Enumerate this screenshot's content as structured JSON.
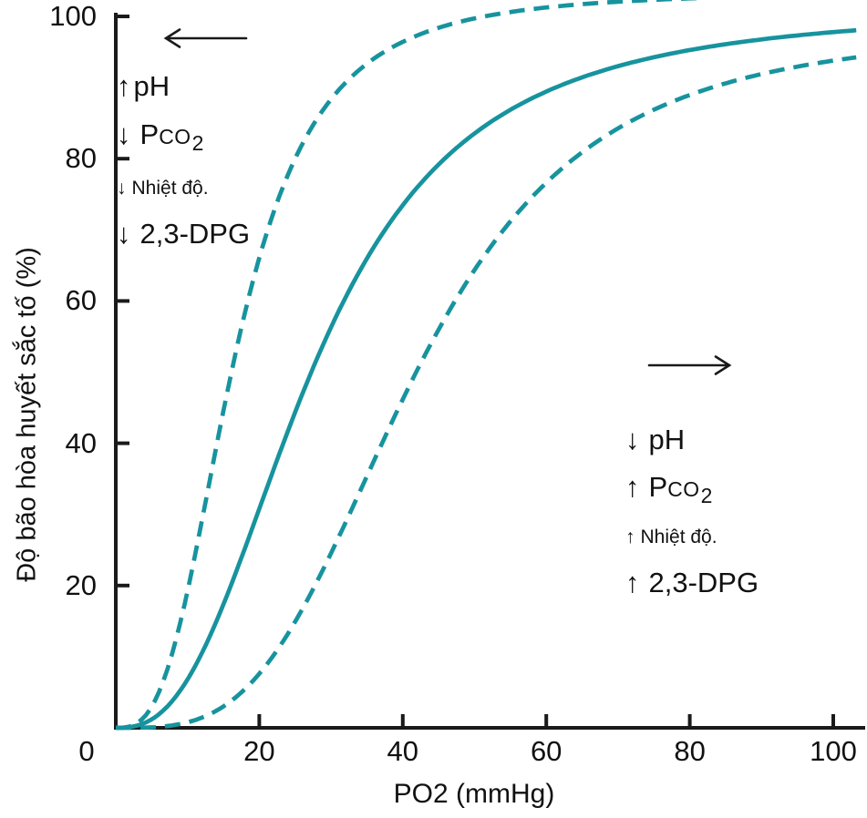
{
  "figure": {
    "background": "#ffffff",
    "curve_color": "#17939E",
    "axis_color": "#1a1a1a",
    "text_color": "#111111"
  },
  "chart_data": {
    "type": "line",
    "title": "",
    "xlabel": "PO2 (mmHg)",
    "ylabel": "Độ bão hòa huyết sắc tố (%)",
    "xlim": [
      0,
      104
    ],
    "ylim": [
      0,
      102
    ],
    "x_ticks": [
      0,
      20,
      40,
      60,
      80,
      100
    ],
    "y_ticks": [
      20,
      40,
      60,
      80,
      100
    ],
    "origin_label": "0",
    "grid": false,
    "legend": "none",
    "series": [
      {
        "name": "left-shifted-curve",
        "line_style": "dashed",
        "model": {
          "p50": 16.5,
          "hill_n": 2.95,
          "scale": 1.035
        },
        "points": [
          [
            0,
            0
          ],
          [
            5,
            3
          ],
          [
            10,
            19
          ],
          [
            16,
            49
          ],
          [
            20,
            66
          ],
          [
            25,
            80
          ],
          [
            30,
            88
          ],
          [
            40,
            96
          ],
          [
            50,
            100
          ],
          [
            60,
            100
          ]
        ]
      },
      {
        "name": "normal-curve",
        "line_style": "solid",
        "model": {
          "p50": 27.5,
          "hill_n": 2.6,
          "scale": 1.012
        },
        "points": [
          [
            0,
            0
          ],
          [
            10,
            7
          ],
          [
            20,
            31
          ],
          [
            27,
            50
          ],
          [
            30,
            56
          ],
          [
            40,
            74
          ],
          [
            50,
            84
          ],
          [
            60,
            89
          ],
          [
            70,
            93
          ],
          [
            80,
            95
          ],
          [
            90,
            97
          ],
          [
            100,
            99
          ]
        ]
      },
      {
        "name": "right-shifted-curve",
        "line_style": "dashed",
        "model": {
          "p50": 41.5,
          "hill_n": 3.4,
          "scale": 0.985
        },
        "points": [
          [
            0,
            0
          ],
          [
            10,
            1
          ],
          [
            20,
            7
          ],
          [
            30,
            25
          ],
          [
            40,
            46
          ],
          [
            42,
            50
          ],
          [
            50,
            64
          ],
          [
            60,
            77
          ],
          [
            70,
            84
          ],
          [
            80,
            89
          ],
          [
            90,
            92
          ],
          [
            100,
            94
          ]
        ]
      }
    ],
    "annotations": {
      "left": {
        "arrow_dir": "left",
        "lines": [
          {
            "glyph": "↑",
            "text": "pH",
            "size": "large",
            "tight": true
          },
          {
            "glyph": "↓",
            "text": "Pco2",
            "size": "large",
            "chem": true
          },
          {
            "glyph": "↓",
            "text": "Nhiệt độ.",
            "size": "small"
          },
          {
            "glyph": "↓",
            "text": "2,3-DPG",
            "size": "large"
          }
        ]
      },
      "right": {
        "arrow_dir": "right",
        "lines": [
          {
            "glyph": "↓",
            "text": "pH",
            "size": "large"
          },
          {
            "glyph": "↑",
            "text": "Pco2",
            "size": "large",
            "chem": true
          },
          {
            "glyph": "↑",
            "text": "Nhiệt độ.",
            "size": "small"
          },
          {
            "glyph": "↑",
            "text": "2,3-DPG",
            "size": "large"
          }
        ]
      }
    }
  }
}
